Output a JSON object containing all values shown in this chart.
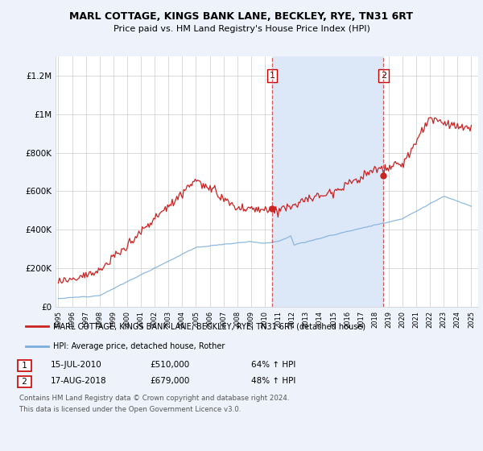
{
  "title": "MARL COTTAGE, KINGS BANK LANE, BECKLEY, RYE, TN31 6RT",
  "subtitle": "Price paid vs. HM Land Registry's House Price Index (HPI)",
  "background_color": "#eef2fb",
  "plot_bg_color": "#ffffff",
  "ylabel_ticks": [
    "£0",
    "£200K",
    "£400K",
    "£600K",
    "£800K",
    "£1M",
    "£1.2M"
  ],
  "ytick_values": [
    0,
    200000,
    400000,
    600000,
    800000,
    1000000,
    1200000
  ],
  "ylim": [
    0,
    1300000
  ],
  "xstart_year": 1995,
  "xend_year": 2025,
  "sale1_year": 2010.54,
  "sale1_price": 510000,
  "sale1_date": "15-JUL-2010",
  "sale1_pct": "64%",
  "sale2_year": 2018.62,
  "sale2_price": 679000,
  "sale2_date": "17-AUG-2018",
  "sale2_pct": "48%",
  "shade_color": "#dce8f8",
  "legend_line1": "MARL COTTAGE, KINGS BANK LANE, BECKLEY, RYE, TN31 6RT (detached house)",
  "legend_line2": "HPI: Average price, detached house, Rother",
  "footnote_line1": "Contains HM Land Registry data © Crown copyright and database right 2024.",
  "footnote_line2": "This data is licensed under the Open Government Licence v3.0.",
  "red_color": "#cc2222",
  "blue_color": "#7aaddb",
  "dashed_color": "#cc4444"
}
